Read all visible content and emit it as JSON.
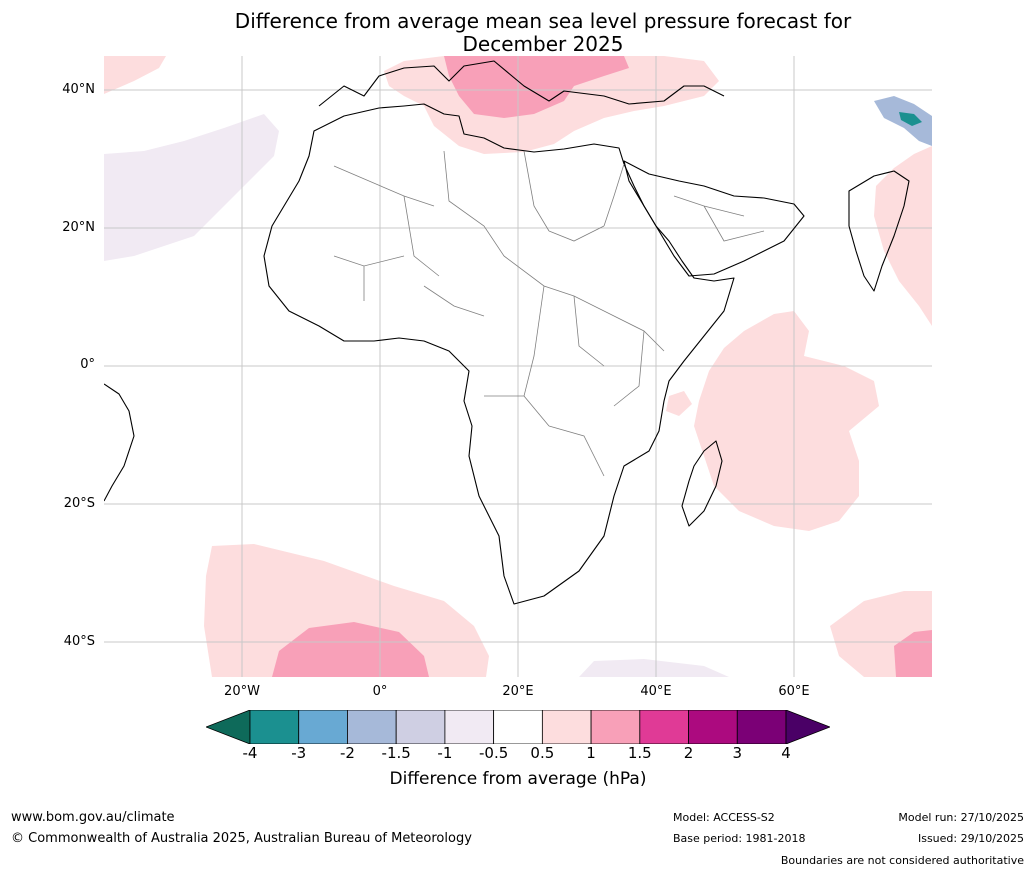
{
  "title": "Difference from average mean sea level pressure forecast for",
  "subtitle": "December 2025",
  "map": {
    "lat_labels": [
      "40°N",
      "20°N",
      "0°",
      "20°S",
      "40°S"
    ],
    "lon_labels": [
      "20°W",
      "0°",
      "20°E",
      "40°E",
      "60°E"
    ]
  },
  "colorbar": {
    "ticks": [
      "-4",
      "-3",
      "-2",
      "-1.5",
      "-1",
      "-0.5",
      "0.5",
      "1",
      "1.5",
      "2",
      "3",
      "4"
    ],
    "colors": [
      "#1b9090",
      "#68a9d3",
      "#a6b9d9",
      "#cfcfe3",
      "#f1eaf3",
      "#ffffff",
      "#fdddde",
      "#f8a0b8",
      "#e03a96",
      "#ac0a7f",
      "#7b0076"
    ],
    "under_color": "#0e6a5a",
    "over_color": "#4a0066",
    "label": "Difference from average (hPa)"
  },
  "footer": {
    "url": "www.bom.gov.au/climate",
    "copyright": "© Commonwealth of Australia 2025, Australian Bureau of Meteorology",
    "model": "Model: ACCESS-S2",
    "base_period": "Base period: 1981-2018",
    "model_run": "Model run: 27/10/2025",
    "issued": "Issued: 29/10/2025",
    "disclaimer": "Boundaries are not considered authoritative"
  }
}
